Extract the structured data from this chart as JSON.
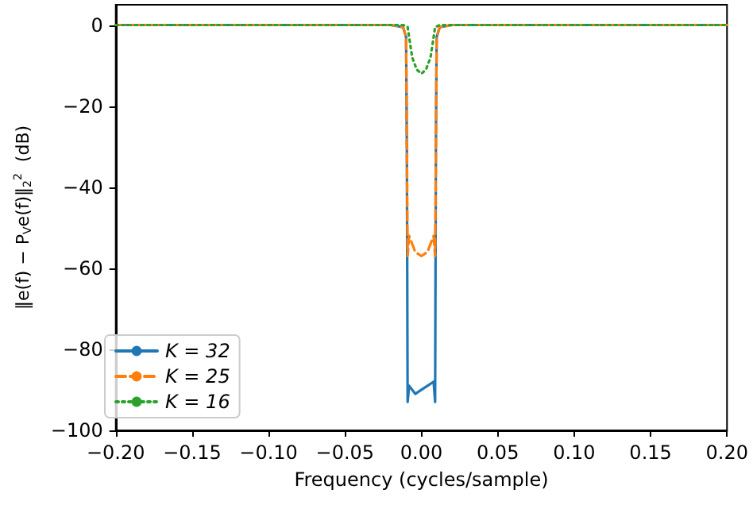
{
  "chart_data": {
    "type": "line",
    "xlabel": "Frequency (cycles/sample)",
    "ylabel": "‖e(f) − P$_{V}$e(f)‖$_{2}$$^{2}$  (dB)",
    "xlim": [
      -0.2,
      0.2
    ],
    "ylim": [
      -100,
      5
    ],
    "xticks": [
      {
        "value": -0.2,
        "label": "−0.20"
      },
      {
        "value": -0.15,
        "label": "−0.15"
      },
      {
        "value": -0.1,
        "label": "−0.10"
      },
      {
        "value": -0.05,
        "label": "−0.05"
      },
      {
        "value": 0,
        "label": "0.00"
      },
      {
        "value": 0.05,
        "label": "0.05"
      },
      {
        "value": 0.1,
        "label": "0.10"
      },
      {
        "value": 0.15,
        "label": "0.15"
      },
      {
        "value": 0.2,
        "label": "0.20"
      }
    ],
    "yticks": [
      {
        "value": -100,
        "label": "−100"
      },
      {
        "value": -80,
        "label": "−80"
      },
      {
        "value": -60,
        "label": "−60"
      },
      {
        "value": -40,
        "label": "−40"
      },
      {
        "value": -20,
        "label": "−20"
      },
      0
    ],
    "grid": false,
    "legend": "bottom left",
    "marker": "none",
    "series": [
      {
        "name": "K = 32",
        "color": "#1f77b4",
        "line_style": "solid",
        "x": [
          -0.2,
          -0.02,
          -0.012,
          -0.01,
          -0.0095,
          -0.009,
          -0.008,
          -0.004,
          0,
          0.004,
          0.008,
          0.009,
          0.0095,
          0.01,
          0.012,
          0.02,
          0.2
        ],
        "values": [
          0,
          0,
          -0.5,
          -3,
          -30,
          -93,
          -89,
          -91,
          -90,
          -89,
          -88,
          -93,
          -30,
          -3,
          -0.5,
          0,
          0
        ]
      },
      {
        "name": "K = 25",
        "color": "#ff7f0e",
        "line_style": "dashed",
        "x": [
          -0.2,
          -0.02,
          -0.012,
          -0.01,
          -0.0095,
          -0.009,
          -0.008,
          -0.004,
          0,
          0.004,
          0.008,
          0.009,
          0.0095,
          0.01,
          0.012,
          0.02,
          0.2
        ],
        "values": [
          0,
          0,
          -0.5,
          -3,
          -30,
          -57,
          -52,
          -56,
          -57,
          -56,
          -52,
          -57,
          -30,
          -3,
          -0.5,
          0,
          0
        ]
      },
      {
        "name": "K = 16",
        "color": "#2ca02c",
        "line_style": "dotted",
        "x": [
          -0.2,
          -0.012,
          -0.009,
          -0.008,
          -0.006,
          -0.003,
          0,
          0.003,
          0.006,
          0.008,
          0.009,
          0.012,
          0.2
        ],
        "values": [
          0,
          0,
          -0.5,
          -3,
          -8,
          -11,
          -12,
          -11,
          -8,
          -3,
          -0.5,
          0,
          0
        ]
      }
    ]
  }
}
